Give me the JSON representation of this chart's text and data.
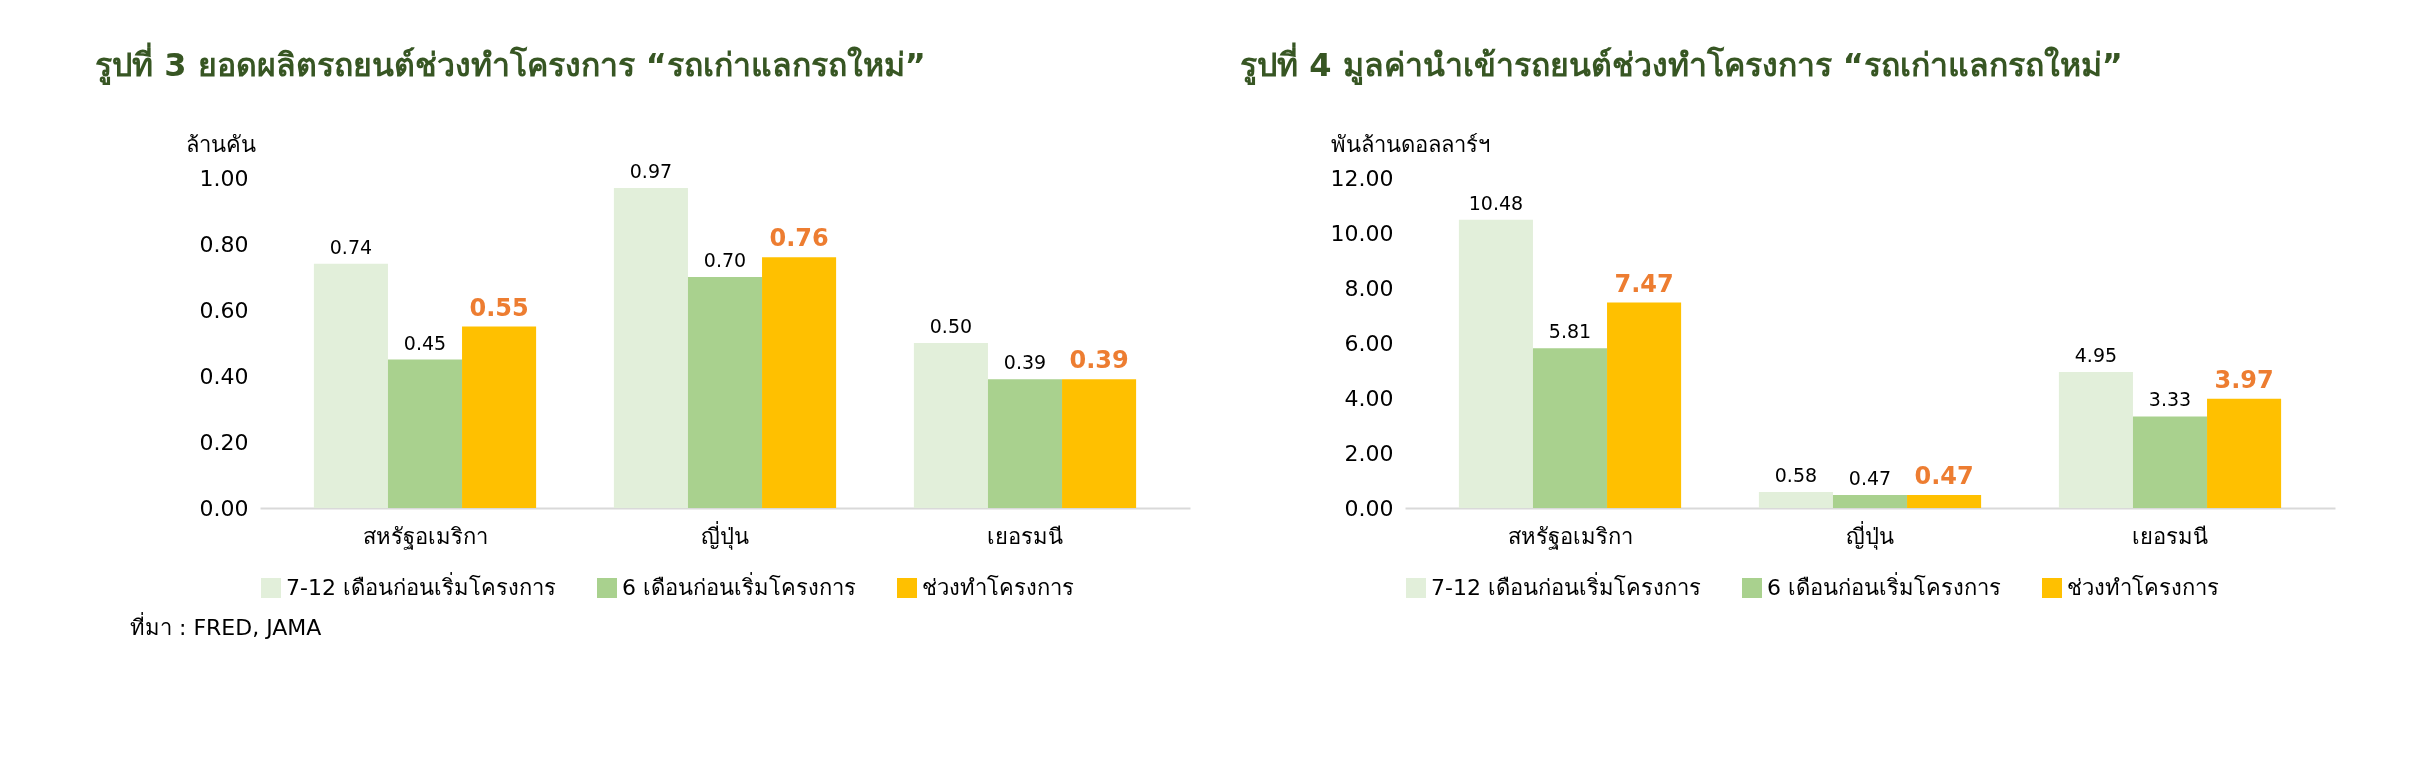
{
  "chart_data": [
    {
      "type": "bar",
      "title": "รูปที่ 3 ยอดผลิตรถยนต์ช่วงทำโครงการ “รถเก่าแลกรถใหม่”",
      "ylabel": "ล้านคัน",
      "categories": [
        "สหรัฐอเมริกา",
        "ญี่ปุ่น",
        "เยอรมนี"
      ],
      "series": [
        {
          "name": "7-12 เดือนก่อนเริ่มโครงการ",
          "color": "#e2efda",
          "values": [
            0.74,
            0.97,
            0.5
          ],
          "value_labels": [
            "0.74",
            "0.97",
            "0.50"
          ]
        },
        {
          "name": "6 เดือนก่อนเริ่มโครงการ",
          "color": "#a9d18e",
          "values": [
            0.45,
            0.7,
            0.39
          ],
          "value_labels": [
            "0.45",
            "0.70",
            "0.39"
          ]
        },
        {
          "name": "ช่วงทำโครงการ",
          "color": "#ffc000",
          "values": [
            0.55,
            0.76,
            0.39
          ],
          "value_labels": [
            "0.55",
            "0.76",
            "0.39"
          ]
        }
      ],
      "ylim": [
        0,
        1
      ],
      "yticks": [
        {
          "value": 0,
          "label": "0.00"
        },
        {
          "value": 0.2,
          "label": "0.20"
        },
        {
          "value": 0.4,
          "label": "0.40"
        },
        {
          "value": 0.6,
          "label": "0.60"
        },
        {
          "value": 0.8,
          "label": "0.80"
        },
        {
          "value": 1,
          "label": "1.00"
        }
      ],
      "grid": false,
      "legend": "bottom",
      "annotations": [
        "ที่มา : FRED, JAMA"
      ]
    },
    {
      "type": "bar",
      "title": "รูปที่ 4 มูลค่านำเข้ารถยนต์ช่วงทำโครงการ “รถเก่าแลกรถใหม่”",
      "ylabel": "พันล้านดอลลาร์ฯ",
      "categories": [
        "สหรัฐอเมริกา",
        "ญี่ปุ่น",
        "เยอรมนี"
      ],
      "series": [
        {
          "name": "7-12 เดือนก่อนเริ่มโครงการ",
          "color": "#e2efda",
          "values": [
            10.48,
            0.58,
            4.95
          ],
          "value_labels": [
            "10.48",
            "0.58",
            "4.95"
          ]
        },
        {
          "name": "6 เดือนก่อนเริ่มโครงการ",
          "color": "#a9d18e",
          "values": [
            5.81,
            0.47,
            3.33
          ],
          "value_labels": [
            "5.81",
            "0.47",
            "3.33"
          ]
        },
        {
          "name": "ช่วงทำโครงการ",
          "color": "#ffc000",
          "values": [
            7.47,
            0.47,
            3.97
          ],
          "value_labels": [
            "7.47",
            "0.47",
            "3.97"
          ]
        }
      ],
      "ylim": [
        0,
        12
      ],
      "yticks": [
        {
          "value": 0,
          "label": "0.00"
        },
        {
          "value": 2,
          "label": "2.00"
        },
        {
          "value": 4,
          "label": "4.00"
        },
        {
          "value": 6,
          "label": "6.00"
        },
        {
          "value": 8,
          "label": "8.00"
        },
        {
          "value": 10,
          "label": "10.00"
        },
        {
          "value": 12,
          "label": "12.00"
        }
      ],
      "grid": false,
      "legend": "bottom"
    }
  ]
}
